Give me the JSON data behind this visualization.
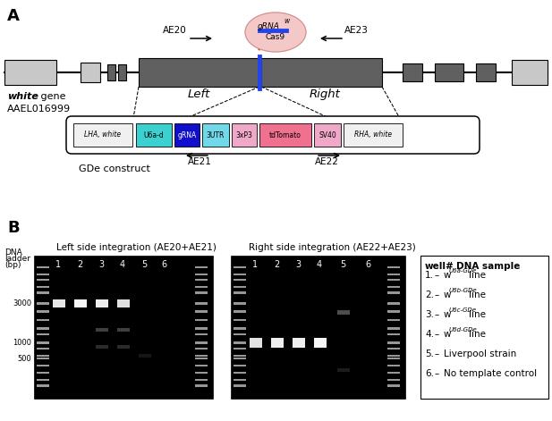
{
  "panel_a_label": "A",
  "panel_b_label": "B",
  "white_gene_label": "white gene",
  "accession_label": "AAEL016999",
  "gde_label": "GDe construct",
  "left_label": "Left",
  "right_label": "Right",
  "ae20_label": "AE20",
  "ae21_label": "AE21",
  "ae22_label": "AE22",
  "ae23_label": "AE23",
  "superscripts": [
    "U6a-GDe",
    "U6b-GDe",
    "U6c-GDe",
    "U6d-GDe"
  ],
  "left_gel_title": "Left side integration (AE20+AE21)",
  "right_gel_title": "Right side integration (AE22+AE23)",
  "light_gray": "#c8c8c8",
  "dark_gray": "#606060",
  "cyan_color": "#3dd0d0",
  "dark_blue": "#1010cc",
  "light_cyan": "#70d8e8",
  "pink_light": "#f0a8c8",
  "pink_dark": "#f07090",
  "background": "#ffffff"
}
